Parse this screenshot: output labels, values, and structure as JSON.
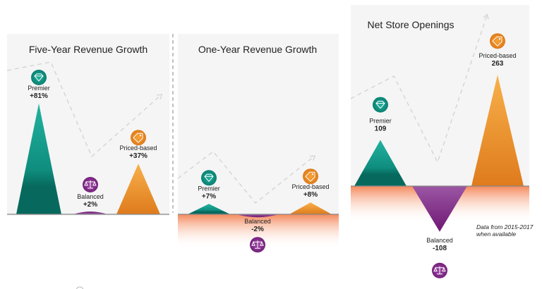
{
  "colors": {
    "premier": "#13a08f",
    "balanced": "#8a2f90",
    "priced": "#ef9a2a",
    "negative_band": "#f4885a",
    "panel_bg": "#f5f5f5"
  },
  "chart_data": [
    {
      "type": "bar",
      "title": "Five-Year Revenue Growth",
      "categories": [
        "Premier",
        "Balanced",
        "Priced-based"
      ],
      "values": [
        81,
        2,
        37
      ],
      "value_labels": [
        "+81%",
        "+2%",
        "+37%"
      ],
      "unit": "%",
      "icons": [
        "diamond-icon",
        "scale-icon",
        "price-tag-icon"
      ]
    },
    {
      "type": "bar",
      "title": "One-Year Revenue Growth",
      "categories": [
        "Premier",
        "Balanced",
        "Priced-based"
      ],
      "values": [
        7,
        -2,
        8
      ],
      "value_labels": [
        "+7%",
        "-2%",
        "+8%"
      ],
      "unit": "%",
      "icons": [
        "diamond-icon",
        "scale-icon",
        "price-tag-icon"
      ]
    },
    {
      "type": "bar",
      "title": "Net Store Openings",
      "categories": [
        "Premier",
        "Balanced",
        "Priced-based"
      ],
      "values": [
        109,
        -108,
        263
      ],
      "value_labels": [
        "109",
        "-108",
        "263"
      ],
      "icons": [
        "diamond-icon",
        "scale-icon",
        "price-tag-icon"
      ],
      "note": [
        "Data from 2015-2017",
        "when available"
      ]
    }
  ]
}
